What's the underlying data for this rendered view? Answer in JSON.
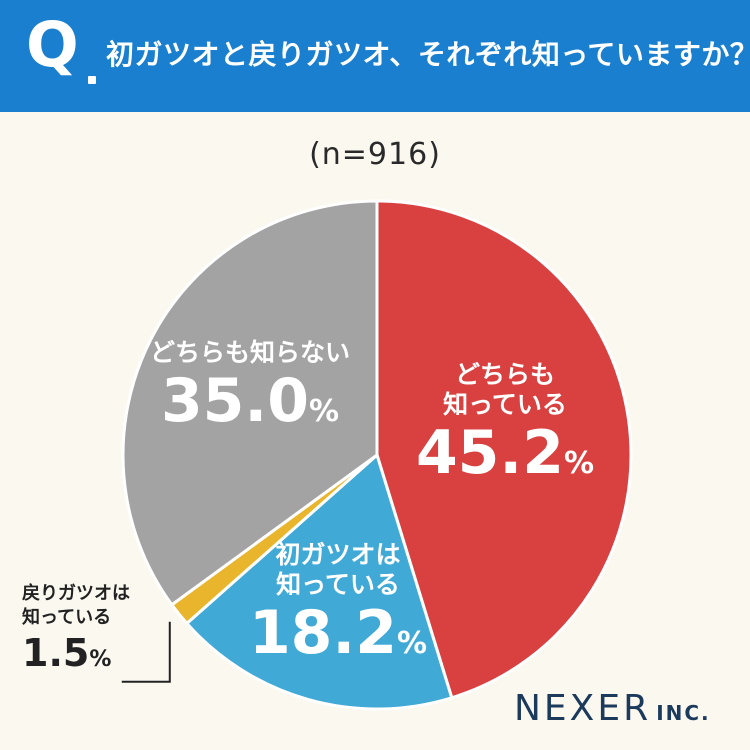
{
  "header": {
    "q_mark": "Q",
    "question": "初ガツオと戻りガツオ、それぞれ知っていますか？"
  },
  "sample_size": "(n=916)",
  "chart_data": {
    "type": "pie",
    "title": "初ガツオと戻りガツオ、それぞれ知っていますか？",
    "subtitle": "(n=916)",
    "slices": [
      {
        "name": "どちらも知っている",
        "value": 45.2,
        "color": "#d94141"
      },
      {
        "name": "初ガツオは知っている",
        "value": 18.2,
        "color": "#41a9d6"
      },
      {
        "name": "戻りガツオは知っている",
        "value": 1.5,
        "color": "#e8b52c"
      },
      {
        "name": "どちらも知らない",
        "value": 35.0,
        "color": "#a3a3a3"
      }
    ]
  },
  "labels": {
    "both_known": {
      "line1": "どちらも",
      "line2": "知っている",
      "num": "45.2",
      "pct": "%"
    },
    "hatsu_known": {
      "line1": "初ガツオは",
      "line2": "知っている",
      "num": "18.2",
      "pct": "%"
    },
    "modori_known": {
      "line1": "戻りガツオは",
      "line2": "知っている",
      "num": "1.5",
      "pct": "%"
    },
    "neither": {
      "line1": "どちらも知らない",
      "num": "35.0",
      "pct": "%"
    }
  },
  "logo": {
    "main": "NEXER",
    "inc": "INC."
  }
}
